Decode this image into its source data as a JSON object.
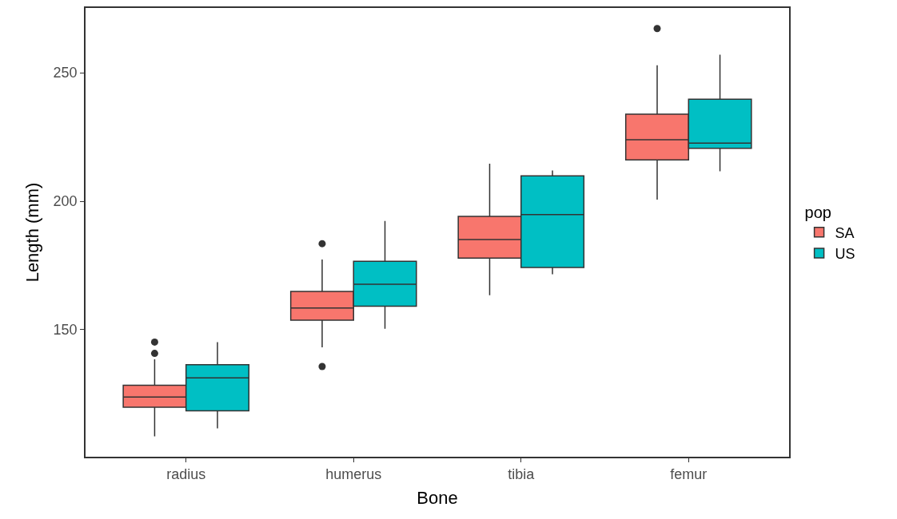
{
  "chart_data": {
    "type": "box",
    "xlabel": "Bone",
    "ylabel": "Length (mm)",
    "legend_title": "pop",
    "categories": [
      "radius",
      "humerus",
      "tibia",
      "femur"
    ],
    "ylim": [
      100.6,
      275.2
    ],
    "yticks": [
      150,
      200,
      250
    ],
    "grid": false,
    "legend": "right",
    "marker": "circle",
    "series": [
      {
        "name": "SA",
        "color": "#f8766d",
        "boxes": [
          {
            "low": 108.5,
            "q1": 119.9,
            "median": 123.8,
            "q3": 128.4,
            "high": 138.5,
            "outliers": [
              140.8,
              145.2
            ]
          },
          {
            "low": 143.2,
            "q1": 153.7,
            "median": 158.5,
            "q3": 164.9,
            "high": 177.3,
            "outliers": [
              135.7,
              183.5
            ]
          },
          {
            "low": 163.4,
            "q1": 177.9,
            "median": 185.1,
            "q3": 194.1,
            "high": 214.6
          },
          {
            "low": 200.6,
            "q1": 216.1,
            "median": 223.9,
            "q3": 233.9,
            "high": 252.9,
            "outliers": [
              267.2
            ]
          }
        ]
      },
      {
        "name": "US",
        "color": "#00bfc4",
        "boxes": [
          {
            "low": 111.6,
            "q1": 118.5,
            "median": 131.3,
            "q3": 136.4,
            "high": 145.2
          },
          {
            "low": 150.4,
            "q1": 159.2,
            "median": 167.7,
            "q3": 176.6,
            "high": 192.3
          },
          {
            "low": 171.6,
            "q1": 174.2,
            "median": 194.8,
            "q3": 209.9,
            "high": 212.0
          },
          {
            "low": 211.7,
            "q1": 220.6,
            "median": 222.6,
            "q3": 239.7,
            "high": 257.0
          }
        ]
      }
    ]
  }
}
